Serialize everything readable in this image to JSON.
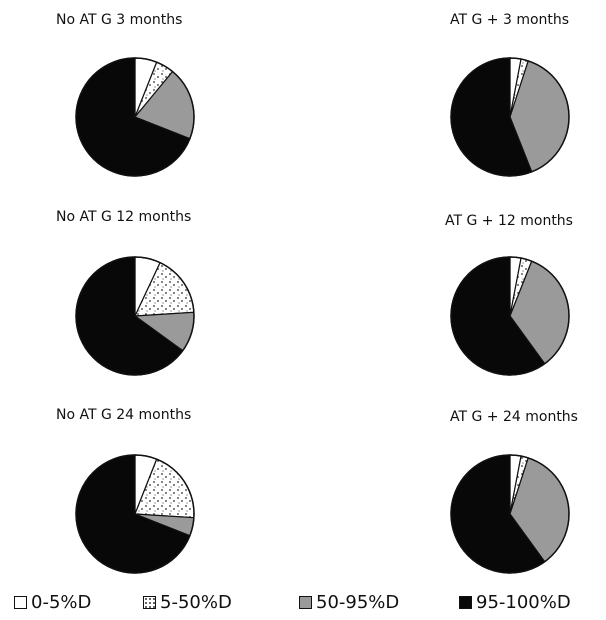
{
  "chart_data": [
    {
      "type": "pie",
      "title": "No AT G 3 months",
      "categories": [
        "0-5%D",
        "5-50%D",
        "50-95%D",
        "95-100%D"
      ],
      "values": [
        6,
        5,
        20,
        69
      ]
    },
    {
      "type": "pie",
      "title": "AT G + 3 months",
      "categories": [
        "0-5%D",
        "5-50%D",
        "50-95%D",
        "95-100%D"
      ],
      "values": [
        3,
        2,
        39,
        56
      ]
    },
    {
      "type": "pie",
      "title": "No AT G 12 months",
      "categories": [
        "0-5%D",
        "5-50%D",
        "50-95%D",
        "95-100%D"
      ],
      "values": [
        7,
        17,
        11,
        65
      ]
    },
    {
      "type": "pie",
      "title": "AT G + 12 months",
      "categories": [
        "0-5%D",
        "5-50%D",
        "50-95%D",
        "95-100%D"
      ],
      "values": [
        3,
        3,
        34,
        60
      ]
    },
    {
      "type": "pie",
      "title": "No AT G 24 months",
      "categories": [
        "0-5%D",
        "5-50%D",
        "50-95%D",
        "95-100%D"
      ],
      "values": [
        6,
        20,
        5,
        69
      ]
    },
    {
      "type": "pie",
      "title": "AT G + 24 months",
      "categories": [
        "0-5%D",
        "5-50%D",
        "50-95%D",
        "95-100%D"
      ],
      "values": [
        3,
        2,
        35,
        60
      ]
    }
  ],
  "legend": {
    "items": [
      {
        "label": "0-5%D",
        "color": "#ffffff"
      },
      {
        "label": "5-50%D",
        "color": "#dcdcdc",
        "pattern": "speckled"
      },
      {
        "label": "50-95%D",
        "color": "#9a9a9a"
      },
      {
        "label": "95-100%D",
        "color": "#080808"
      }
    ]
  }
}
